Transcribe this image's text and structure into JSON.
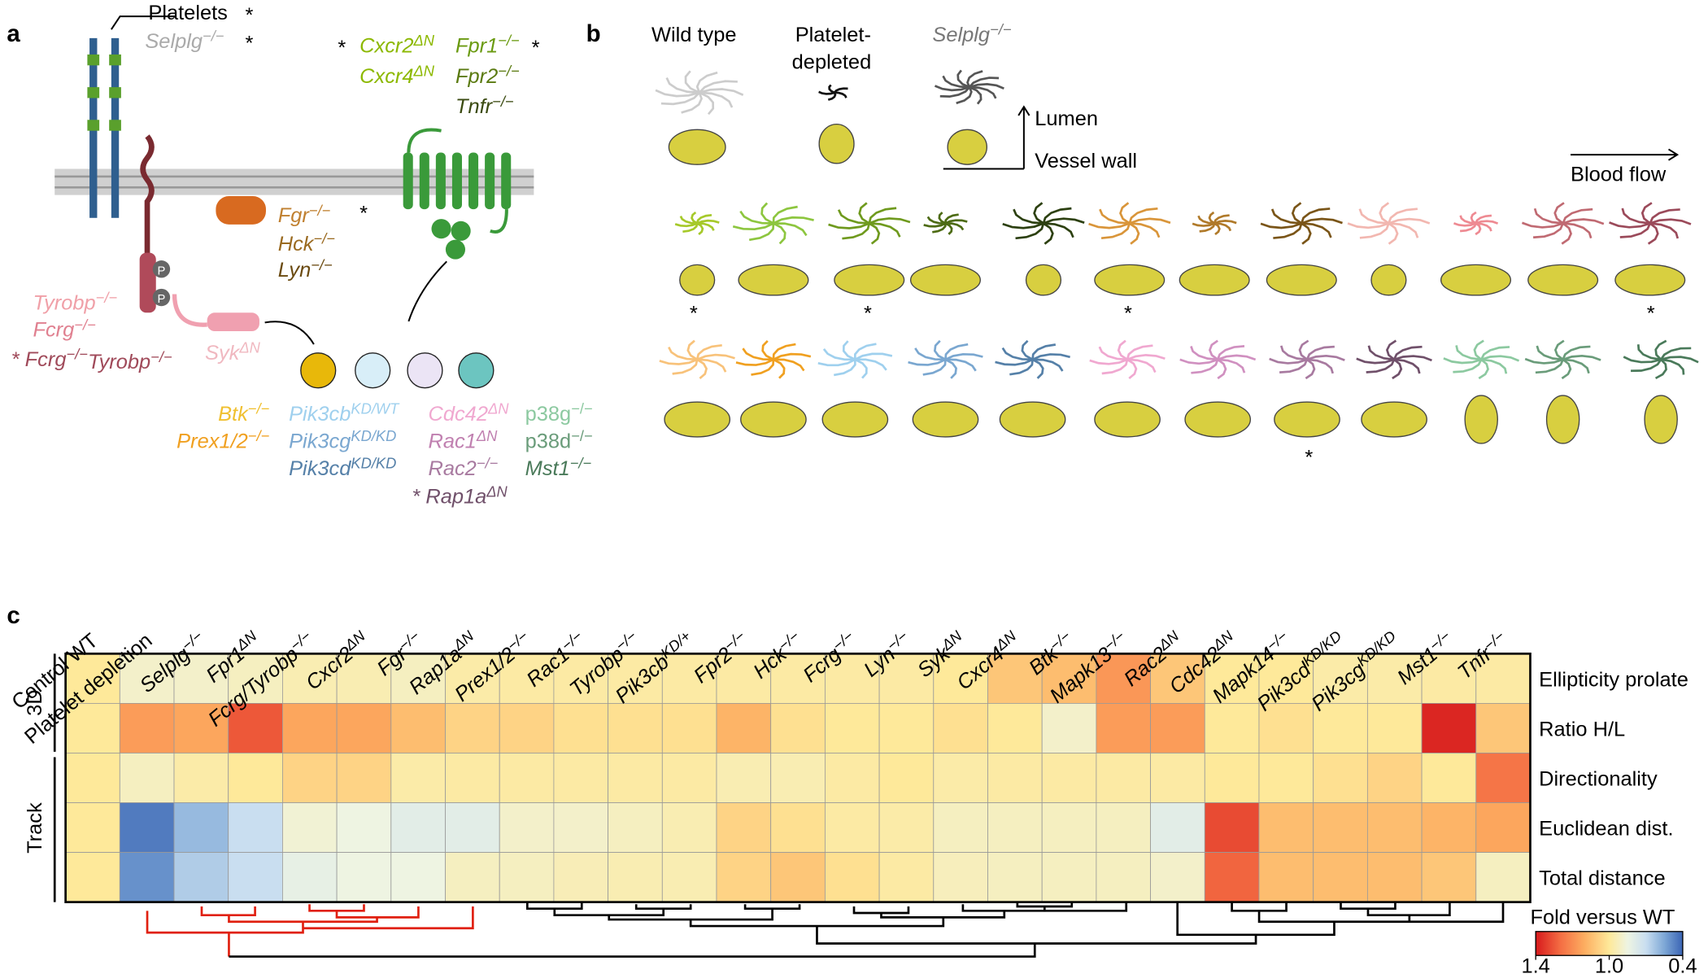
{
  "panel_a": {
    "label": "a",
    "platelets": "Platelets",
    "selplg": "Selplg−/−",
    "gpcr": [
      "Cxcr2ΔN",
      "Fpr1−/−",
      "Cxcr4ΔN",
      "Fpr2−/−",
      "Tnfr−/−"
    ],
    "src": [
      "Fgr−/−",
      "Hck−/−",
      "Lyn−/−"
    ],
    "itam": [
      "Tyrobp−/−",
      "Fcrg−/−",
      "* Fcrg−/−Tyrobp−/−"
    ],
    "syk": "SykΔN",
    "phospho": [
      "P",
      "P"
    ],
    "btk": [
      "Btk−/−",
      "Prex1/2−/−"
    ],
    "pi3k": [
      "Pik3cbKD/WT",
      "Pik3cgKD/KD",
      "Pik3cdKD/KD"
    ],
    "gtpase": [
      "Cdc42ΔN",
      "Rac1ΔN",
      "Rac2−/−",
      "* Rap1aΔN"
    ],
    "mapk": [
      "p38g−/−",
      "p38d−/−",
      "Mst1−/−"
    ],
    "asterisks": [
      "*",
      "*",
      "*",
      "*",
      "*"
    ]
  },
  "panel_b": {
    "label": "b",
    "wild_type": "Wild type",
    "platelet_depleted": [
      "Platelet-",
      "depleted"
    ],
    "selplg": "Selplg−/−",
    "lumen": "Lumen",
    "vessel_wall": "Vessel wall",
    "blood_flow": "Blood flow",
    "asterisks": [
      "*",
      "*",
      "*",
      "*",
      "*"
    ]
  },
  "chart_data": {
    "type": "heatmap",
    "panel_label": "c",
    "categories": [
      "Control WT",
      "Platelet depletion",
      "Selplg−/−",
      "Fpr1ΔN",
      "Fcrg/Tyrobp−/−",
      "Cxcr2ΔN",
      "Fgr−/−",
      "Rap1aΔN",
      "Prex1/2−/−",
      "Rac1−/−",
      "Tyrobp−/−",
      "Pik3cbKD/+",
      "Fpr2−/−",
      "Hck−/−",
      "Fcrg−/−",
      "Lyn−/−",
      "SykΔN",
      "Cxcr4ΔN",
      "Btk−/−",
      "Mapk13−/−",
      "Rac2ΔN",
      "Cdc42ΔN",
      "Mapk14−/−",
      "Pik3cdKD/KD",
      "Pik3cgKD/KD",
      "Mst1−/−",
      "Tnfr−/−"
    ],
    "rows": [
      "Ellipticity prolate",
      "Ratio H/L",
      "Directionality",
      "Euclidean dist.",
      "Total distance"
    ],
    "row_groups": [
      "3D",
      "Track"
    ],
    "values": [
      [
        1.0,
        0.9,
        0.9,
        0.92,
        0.95,
        0.95,
        0.92,
        0.97,
        0.98,
        0.98,
        0.98,
        0.98,
        0.98,
        0.98,
        0.98,
        0.98,
        1.0,
        1.08,
        1.1,
        1.18,
        1.08,
        1.0,
        1.0,
        0.97,
        0.97,
        0.98,
        0.98
      ],
      [
        1.0,
        1.17,
        1.15,
        1.3,
        1.15,
        1.15,
        1.1,
        1.05,
        1.05,
        1.02,
        1.02,
        1.02,
        1.12,
        1.02,
        1.0,
        1.0,
        1.02,
        1.0,
        0.9,
        1.17,
        1.17,
        1.0,
        1.02,
        1.0,
        1.0,
        1.38,
        1.08
      ],
      [
        1.0,
        0.92,
        0.97,
        1.0,
        1.05,
        1.05,
        0.97,
        0.98,
        0.98,
        0.98,
        0.98,
        0.98,
        0.95,
        0.95,
        0.98,
        1.0,
        0.97,
        0.98,
        0.98,
        0.98,
        0.98,
        1.0,
        1.0,
        1.02,
        1.05,
        1.0,
        1.25
      ],
      [
        1.0,
        0.45,
        0.6,
        0.7,
        0.88,
        0.85,
        0.8,
        0.8,
        0.9,
        0.9,
        0.92,
        0.95,
        1.05,
        1.02,
        0.98,
        0.97,
        0.92,
        0.92,
        0.92,
        0.92,
        0.8,
        1.32,
        1.1,
        1.1,
        1.1,
        1.12,
        1.15
      ],
      [
        1.0,
        0.5,
        0.65,
        0.7,
        0.82,
        0.85,
        0.85,
        0.92,
        0.92,
        0.94,
        0.95,
        0.95,
        1.05,
        1.08,
        1.02,
        0.98,
        0.93,
        0.92,
        0.92,
        0.92,
        0.9,
        1.28,
        1.1,
        1.1,
        1.1,
        1.08,
        0.92
      ]
    ],
    "colorbar_title": "Fold versus WT",
    "clim": [
      0.4,
      1.4
    ],
    "cmid": 1,
    "cticks": [
      1.4,
      {
        "value": 1,
        "label": "1.0"
      },
      0.4
    ],
    "colors_high": [
      "#fee99a",
      "#fdae61",
      "#f46d43",
      "#d7191c"
    ],
    "colors_low": [
      "#fee99a",
      "#eef4e2",
      "#c9def0",
      "#7ea8d6",
      "#3a64b4"
    ]
  }
}
